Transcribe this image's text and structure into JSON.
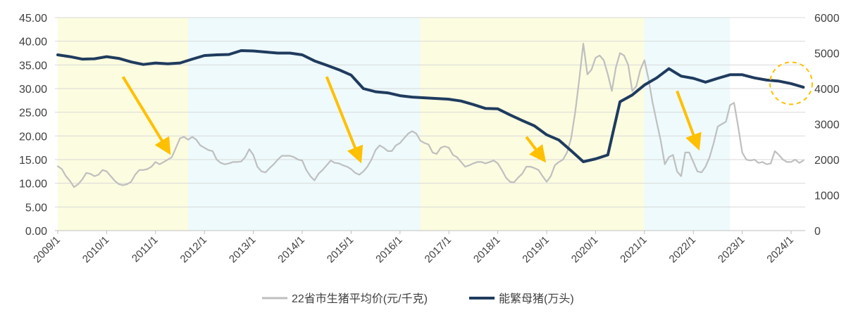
{
  "chart_data": {
    "type": "line",
    "title": "",
    "xlabel": "",
    "ylabel_left": "",
    "ylabel_right": "",
    "x_range": [
      "2009-01",
      "2024-05"
    ],
    "ylim_left": [
      0,
      45
    ],
    "ylim_right": [
      0,
      6000
    ],
    "y_ticks_left": [
      "0.00",
      "5.00",
      "10.00",
      "15.00",
      "20.00",
      "25.00",
      "30.00",
      "35.00",
      "40.00",
      "45.00"
    ],
    "y_ticks_right": [
      "0",
      "1000",
      "2000",
      "3000",
      "4000",
      "5000",
      "6000"
    ],
    "x_ticks": [
      "2009/1",
      "2010/1",
      "2011/1",
      "2012/1",
      "2013/1",
      "2014/1",
      "2015/1",
      "2016/1",
      "2017/1",
      "2018/1",
      "2019/1",
      "2020/1",
      "2021/1",
      "2022/1",
      "2023/1",
      "2024/1"
    ],
    "grid": "horizontal",
    "legend_placement": "bottom-center",
    "shaded_periods": [
      {
        "start": "2009-01",
        "end": "2011-09",
        "color": "#fcfce0"
      },
      {
        "start": "2011-09",
        "end": "2016-06",
        "color": "#eefafc"
      },
      {
        "start": "2016-06",
        "end": "2021-01",
        "color": "#fcfce0"
      },
      {
        "start": "2021-01",
        "end": "2022-10",
        "color": "#eefafc"
      }
    ],
    "series": [
      {
        "name": "22省市生猪平均价(元/千克)",
        "axis": "left",
        "color": "#bfbfbf",
        "points": [
          [
            "2009-01",
            13.6
          ],
          [
            "2009-02",
            13.0
          ],
          [
            "2009-03",
            11.5
          ],
          [
            "2009-04",
            10.5
          ],
          [
            "2009-05",
            9.2
          ],
          [
            "2009-06",
            9.8
          ],
          [
            "2009-07",
            10.8
          ],
          [
            "2009-08",
            12.2
          ],
          [
            "2009-09",
            12.0
          ],
          [
            "2009-10",
            11.5
          ],
          [
            "2009-11",
            11.8
          ],
          [
            "2009-12",
            12.8
          ],
          [
            "2010-01",
            12.5
          ],
          [
            "2010-02",
            11.5
          ],
          [
            "2010-03",
            10.5
          ],
          [
            "2010-04",
            9.8
          ],
          [
            "2010-05",
            9.6
          ],
          [
            "2010-06",
            9.8
          ],
          [
            "2010-07",
            10.3
          ],
          [
            "2010-08",
            11.8
          ],
          [
            "2010-09",
            12.8
          ],
          [
            "2010-10",
            12.8
          ],
          [
            "2010-11",
            13.0
          ],
          [
            "2010-12",
            13.5
          ],
          [
            "2011-01",
            14.5
          ],
          [
            "2011-02",
            14.0
          ],
          [
            "2011-03",
            14.5
          ],
          [
            "2011-04",
            15.0
          ],
          [
            "2011-05",
            15.5
          ],
          [
            "2011-06",
            17.5
          ],
          [
            "2011-07",
            19.5
          ],
          [
            "2011-08",
            19.8
          ],
          [
            "2011-09",
            19.2
          ],
          [
            "2011-10",
            19.8
          ],
          [
            "2011-11",
            19.2
          ],
          [
            "2011-12",
            18.0
          ],
          [
            "2012-01",
            17.5
          ],
          [
            "2012-02",
            17.0
          ],
          [
            "2012-03",
            16.8
          ],
          [
            "2012-04",
            15.0
          ],
          [
            "2012-05",
            14.3
          ],
          [
            "2012-06",
            14.0
          ],
          [
            "2012-07",
            14.2
          ],
          [
            "2012-08",
            14.5
          ],
          [
            "2012-09",
            14.5
          ],
          [
            "2012-10",
            14.6
          ],
          [
            "2012-11",
            15.5
          ],
          [
            "2012-12",
            17.2
          ],
          [
            "2013-01",
            16.0
          ],
          [
            "2013-02",
            13.5
          ],
          [
            "2013-03",
            12.5
          ],
          [
            "2013-04",
            12.3
          ],
          [
            "2013-05",
            13.2
          ],
          [
            "2013-06",
            14.0
          ],
          [
            "2013-07",
            15.0
          ],
          [
            "2013-08",
            15.8
          ],
          [
            "2013-09",
            15.8
          ],
          [
            "2013-10",
            15.8
          ],
          [
            "2013-11",
            15.5
          ],
          [
            "2013-12",
            15.0
          ],
          [
            "2014-01",
            14.8
          ],
          [
            "2014-02",
            12.8
          ],
          [
            "2014-03",
            11.5
          ],
          [
            "2014-04",
            10.6
          ],
          [
            "2014-05",
            12.0
          ],
          [
            "2014-06",
            12.8
          ],
          [
            "2014-07",
            13.8
          ],
          [
            "2014-08",
            14.8
          ],
          [
            "2014-09",
            14.3
          ],
          [
            "2014-10",
            14.2
          ],
          [
            "2014-11",
            13.8
          ],
          [
            "2014-12",
            13.5
          ],
          [
            "2015-01",
            13.0
          ],
          [
            "2015-02",
            12.2
          ],
          [
            "2015-03",
            11.8
          ],
          [
            "2015-04",
            12.5
          ],
          [
            "2015-05",
            13.5
          ],
          [
            "2015-06",
            15.0
          ],
          [
            "2015-07",
            17.0
          ],
          [
            "2015-08",
            18.0
          ],
          [
            "2015-09",
            17.5
          ],
          [
            "2015-10",
            16.8
          ],
          [
            "2015-11",
            16.8
          ],
          [
            "2015-12",
            18.0
          ],
          [
            "2016-01",
            18.5
          ],
          [
            "2016-02",
            19.5
          ],
          [
            "2016-03",
            20.5
          ],
          [
            "2016-04",
            21.0
          ],
          [
            "2016-05",
            20.5
          ],
          [
            "2016-06",
            19.0
          ],
          [
            "2016-07",
            18.5
          ],
          [
            "2016-08",
            18.2
          ],
          [
            "2016-09",
            16.5
          ],
          [
            "2016-10",
            16.2
          ],
          [
            "2016-11",
            17.5
          ],
          [
            "2016-12",
            17.8
          ],
          [
            "2017-01",
            17.5
          ],
          [
            "2017-02",
            16.0
          ],
          [
            "2017-03",
            15.5
          ],
          [
            "2017-04",
            14.5
          ],
          [
            "2017-05",
            13.5
          ],
          [
            "2017-06",
            13.8
          ],
          [
            "2017-07",
            14.2
          ],
          [
            "2017-08",
            14.5
          ],
          [
            "2017-09",
            14.5
          ],
          [
            "2017-10",
            14.2
          ],
          [
            "2017-11",
            14.5
          ],
          [
            "2017-12",
            14.8
          ],
          [
            "2018-01",
            14.2
          ],
          [
            "2018-02",
            12.8
          ],
          [
            "2018-03",
            11.2
          ],
          [
            "2018-04",
            10.3
          ],
          [
            "2018-05",
            10.2
          ],
          [
            "2018-06",
            11.2
          ],
          [
            "2018-07",
            12.0
          ],
          [
            "2018-08",
            13.5
          ],
          [
            "2018-09",
            13.5
          ],
          [
            "2018-10",
            13.2
          ],
          [
            "2018-11",
            12.8
          ],
          [
            "2018-12",
            11.5
          ],
          [
            "2019-01",
            10.3
          ],
          [
            "2019-02",
            11.5
          ],
          [
            "2019-03",
            13.8
          ],
          [
            "2019-04",
            14.5
          ],
          [
            "2019-05",
            15.0
          ],
          [
            "2019-06",
            16.5
          ],
          [
            "2019-07",
            19.5
          ],
          [
            "2019-08",
            25.0
          ],
          [
            "2019-09",
            32.0
          ],
          [
            "2019-10",
            39.5
          ],
          [
            "2019-11",
            33.0
          ],
          [
            "2019-12",
            34.0
          ],
          [
            "2020-01",
            36.5
          ],
          [
            "2020-02",
            37.0
          ],
          [
            "2020-03",
            36.0
          ],
          [
            "2020-04",
            33.0
          ],
          [
            "2020-05",
            29.5
          ],
          [
            "2020-06",
            34.5
          ],
          [
            "2020-07",
            37.5
          ],
          [
            "2020-08",
            37.0
          ],
          [
            "2020-09",
            35.0
          ],
          [
            "2020-10",
            29.5
          ],
          [
            "2020-11",
            30.5
          ],
          [
            "2020-12",
            34.0
          ],
          [
            "2021-01",
            36.0
          ],
          [
            "2021-02",
            32.0
          ],
          [
            "2021-03",
            27.0
          ],
          [
            "2021-04",
            23.0
          ],
          [
            "2021-05",
            19.0
          ],
          [
            "2021-06",
            14.0
          ],
          [
            "2021-07",
            15.5
          ],
          [
            "2021-08",
            16.0
          ],
          [
            "2021-09",
            12.5
          ],
          [
            "2021-10",
            11.5
          ],
          [
            "2021-11",
            16.5
          ],
          [
            "2021-12",
            16.5
          ],
          [
            "2022-01",
            14.5
          ],
          [
            "2022-02",
            12.5
          ],
          [
            "2022-03",
            12.3
          ],
          [
            "2022-04",
            13.5
          ],
          [
            "2022-05",
            15.5
          ],
          [
            "2022-06",
            18.5
          ],
          [
            "2022-07",
            22.0
          ],
          [
            "2022-08",
            22.5
          ],
          [
            "2022-09",
            23.0
          ],
          [
            "2022-10",
            26.5
          ],
          [
            "2022-11",
            27.0
          ],
          [
            "2022-12",
            22.0
          ],
          [
            "2023-01",
            16.5
          ],
          [
            "2023-02",
            15.0
          ],
          [
            "2023-03",
            14.8
          ],
          [
            "2023-04",
            15.0
          ],
          [
            "2023-05",
            14.3
          ],
          [
            "2023-06",
            14.5
          ],
          [
            "2023-07",
            14.0
          ],
          [
            "2023-08",
            14.2
          ],
          [
            "2023-09",
            16.8
          ],
          [
            "2023-10",
            16.0
          ],
          [
            "2023-11",
            15.0
          ],
          [
            "2023-12",
            14.5
          ],
          [
            "2024-01",
            14.5
          ],
          [
            "2024-02",
            15.0
          ],
          [
            "2024-03",
            14.3
          ],
          [
            "2024-04",
            14.8
          ]
        ]
      },
      {
        "name": "能繁母猪(万头)",
        "axis": "right",
        "color": "#1f3b5e",
        "points": [
          [
            "2009-01",
            4950
          ],
          [
            "2009-04",
            4900
          ],
          [
            "2009-07",
            4830
          ],
          [
            "2009-10",
            4840
          ],
          [
            "2010-01",
            4900
          ],
          [
            "2010-04",
            4850
          ],
          [
            "2010-07",
            4750
          ],
          [
            "2010-10",
            4680
          ],
          [
            "2011-01",
            4720
          ],
          [
            "2011-04",
            4700
          ],
          [
            "2011-07",
            4720
          ],
          [
            "2011-10",
            4830
          ],
          [
            "2012-01",
            4930
          ],
          [
            "2012-04",
            4950
          ],
          [
            "2012-07",
            4960
          ],
          [
            "2012-10",
            5070
          ],
          [
            "2013-01",
            5060
          ],
          [
            "2013-04",
            5030
          ],
          [
            "2013-07",
            5000
          ],
          [
            "2013-10",
            5000
          ],
          [
            "2014-01",
            4950
          ],
          [
            "2014-04",
            4780
          ],
          [
            "2014-07",
            4660
          ],
          [
            "2014-10",
            4530
          ],
          [
            "2015-01",
            4380
          ],
          [
            "2015-04",
            4000
          ],
          [
            "2015-07",
            3910
          ],
          [
            "2015-10",
            3880
          ],
          [
            "2016-01",
            3800
          ],
          [
            "2016-04",
            3760
          ],
          [
            "2016-07",
            3740
          ],
          [
            "2016-10",
            3720
          ],
          [
            "2017-01",
            3700
          ],
          [
            "2017-04",
            3650
          ],
          [
            "2017-07",
            3550
          ],
          [
            "2017-10",
            3440
          ],
          [
            "2018-01",
            3430
          ],
          [
            "2018-04",
            3260
          ],
          [
            "2018-07",
            3100
          ],
          [
            "2018-10",
            2950
          ],
          [
            "2019-01",
            2700
          ],
          [
            "2019-04",
            2550
          ],
          [
            "2019-07",
            2250
          ],
          [
            "2019-10",
            1940
          ],
          [
            "2020-01",
            2020
          ],
          [
            "2020-04",
            2130
          ],
          [
            "2020-07",
            3630
          ],
          [
            "2020-10",
            3820
          ],
          [
            "2021-01",
            4100
          ],
          [
            "2021-04",
            4300
          ],
          [
            "2021-07",
            4560
          ],
          [
            "2021-10",
            4350
          ],
          [
            "2022-01",
            4290
          ],
          [
            "2022-04",
            4180
          ],
          [
            "2022-07",
            4290
          ],
          [
            "2022-10",
            4390
          ],
          [
            "2023-01",
            4390
          ],
          [
            "2023-04",
            4300
          ],
          [
            "2023-07",
            4240
          ],
          [
            "2023-10",
            4210
          ],
          [
            "2024-01",
            4140
          ],
          [
            "2024-04",
            4040
          ]
        ]
      }
    ],
    "annotations": [
      {
        "type": "arrow",
        "color": "#ffc000",
        "from": [
          "2010-05",
          32.5
        ],
        "to": [
          "2011-04",
          17.0
        ]
      },
      {
        "type": "arrow",
        "color": "#ffc000",
        "from": [
          "2014-07",
          32.5
        ],
        "to": [
          "2015-03",
          15.3
        ]
      },
      {
        "type": "arrow",
        "color": "#ffc000",
        "from": [
          "2018-08",
          19.8
        ],
        "to": [
          "2018-12",
          15.3
        ]
      },
      {
        "type": "arrow",
        "color": "#ffc000",
        "from": [
          "2021-09",
          29.5
        ],
        "to": [
          "2022-02",
          18.0
        ]
      },
      {
        "type": "dashed-circle",
        "color": "#ffc000",
        "center": [
          "2024-01",
          4150
        ]
      }
    ]
  }
}
